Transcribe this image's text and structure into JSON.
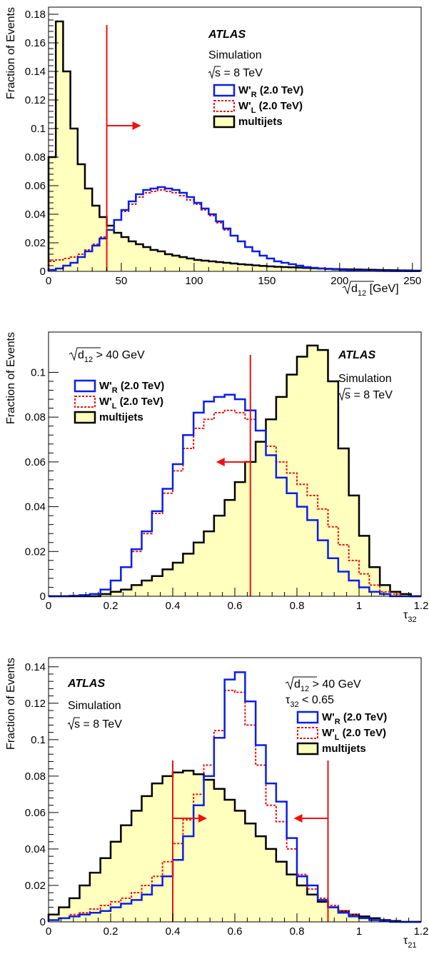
{
  "colors": {
    "wr": "#0a1ee6",
    "wl": "#ee1111",
    "qcd_fill": "#ffffbe",
    "qcd_line": "#000000",
    "cut": "#ee1111"
  },
  "chart_data": [
    {
      "type": "histogram",
      "ylabel": "Fraction of Events",
      "xlim": [
        0,
        256
      ],
      "ylim": [
        0,
        0.185
      ],
      "xticks": [
        0,
        50,
        100,
        150,
        200,
        250
      ],
      "xtick_labels": [
        "0",
        "50",
        "100",
        "150",
        "200",
        "250"
      ],
      "yticks": [
        0,
        0.02,
        0.04,
        0.06,
        0.08,
        0.1,
        0.12,
        0.14,
        0.16,
        0.18
      ],
      "ytick_labels": [
        "0",
        "0.02",
        "0.04",
        "0.06",
        "0.08",
        "0.1",
        "0.12",
        "0.14",
        "0.16",
        "0.18"
      ],
      "xlabel_parts": [
        "d",
        "12",
        " [GeV]"
      ],
      "annotations": [
        "ATLAS",
        "Simulation",
        "s = 8 TeV"
      ],
      "legend": [
        {
          "base": "W'",
          "sub": "R",
          "rest": " (2.0 TeV)"
        },
        {
          "base": "W'",
          "sub": "L",
          "rest": " (2.0 TeV)"
        },
        {
          "base": "multijets",
          "sub": "",
          "rest": ""
        }
      ],
      "cuts": [
        {
          "x": 40,
          "direction": "right"
        }
      ],
      "bin_edges": [
        0,
        5,
        10,
        15,
        20,
        25,
        30,
        35,
        40,
        45,
        50,
        55,
        60,
        65,
        70,
        75,
        80,
        85,
        90,
        95,
        100,
        105,
        110,
        115,
        120,
        125,
        130,
        135,
        140,
        145,
        150,
        155,
        160,
        165,
        170,
        175,
        180,
        185,
        190,
        195,
        200,
        205,
        210,
        215,
        220,
        225,
        230,
        235,
        240,
        245,
        250,
        255
      ],
      "series": [
        {
          "name": "W'R (2.0 TeV)",
          "style": "solid-blue",
          "values": [
            0.001,
            0.002,
            0.004,
            0.006,
            0.01,
            0.014,
            0.018,
            0.023,
            0.029,
            0.036,
            0.043,
            0.049,
            0.054,
            0.057,
            0.058,
            0.059,
            0.058,
            0.057,
            0.055,
            0.052,
            0.048,
            0.044,
            0.04,
            0.035,
            0.03,
            0.025,
            0.021,
            0.017,
            0.014,
            0.011,
            0.009,
            0.007,
            0.006,
            0.005,
            0.004,
            0.003,
            0.0025,
            0.002,
            0.0016,
            0.0013,
            0.001,
            0.0008,
            0.0006,
            0.0005,
            0.0004,
            0.0003,
            0.00025,
            0.0002,
            0.0002,
            0.0001,
            0.0001
          ]
        },
        {
          "name": "W'L (2.0 TeV)",
          "style": "dashed-red",
          "values": [
            0.007,
            0.008,
            0.009,
            0.01,
            0.012,
            0.015,
            0.019,
            0.024,
            0.029,
            0.036,
            0.042,
            0.047,
            0.052,
            0.055,
            0.056,
            0.057,
            0.056,
            0.055,
            0.053,
            0.05,
            0.047,
            0.043,
            0.039,
            0.034,
            0.029,
            0.025,
            0.021,
            0.017,
            0.014,
            0.011,
            0.009,
            0.007,
            0.006,
            0.005,
            0.004,
            0.003,
            0.0025,
            0.002,
            0.0016,
            0.0013,
            0.001,
            0.0008,
            0.0006,
            0.0005,
            0.0004,
            0.0003,
            0.00025,
            0.0002,
            0.0002,
            0.0001,
            0.0001
          ]
        },
        {
          "name": "multijets",
          "style": "filled",
          "values": [
            0.08,
            0.175,
            0.14,
            0.1,
            0.075,
            0.058,
            0.046,
            0.038,
            0.032,
            0.027,
            0.024,
            0.021,
            0.019,
            0.017,
            0.015,
            0.014,
            0.012,
            0.011,
            0.01,
            0.009,
            0.008,
            0.0075,
            0.007,
            0.0065,
            0.006,
            0.0055,
            0.005,
            0.0046,
            0.0042,
            0.0038,
            0.0035,
            0.0032,
            0.003,
            0.0028,
            0.0026,
            0.0024,
            0.0022,
            0.002,
            0.0018,
            0.0016,
            0.0015,
            0.0014,
            0.0013,
            0.0012,
            0.0011,
            0.001,
            0.0009,
            0.0008,
            0.0007,
            0.0006,
            0.0005
          ]
        }
      ]
    },
    {
      "type": "histogram",
      "ylabel": "Fraction of Events",
      "xlim": [
        0,
        1.2
      ],
      "ylim": [
        0,
        0.118
      ],
      "xticks": [
        0,
        0.2,
        0.4,
        0.6,
        0.8,
        1.0,
        1.2
      ],
      "xtick_labels": [
        "0",
        "0.2",
        "0.4",
        "0.6",
        "0.8",
        "1",
        "1.2"
      ],
      "yticks": [
        0,
        0.02,
        0.04,
        0.06,
        0.08,
        0.1
      ],
      "ytick_labels": [
        "0",
        "0.02",
        "0.04",
        "0.06",
        "0.08",
        "0.1"
      ],
      "xlabel_parts": [
        "τ",
        "32",
        ""
      ],
      "annotations": [
        "ATLAS",
        "Simulation",
        "s = 8 TeV"
      ],
      "cut_text": [
        "d",
        "12",
        " > 40 GeV"
      ],
      "legend": [
        {
          "base": "W'",
          "sub": "R",
          "rest": " (2.0 TeV)"
        },
        {
          "base": "W'",
          "sub": "L",
          "rest": " (2.0 TeV)"
        },
        {
          "base": "multijets",
          "sub": "",
          "rest": ""
        }
      ],
      "cuts": [
        {
          "x": 0.65,
          "direction": "left"
        }
      ],
      "bin_edges": [
        0,
        0.033,
        0.067,
        0.1,
        0.133,
        0.167,
        0.2,
        0.233,
        0.267,
        0.3,
        0.333,
        0.367,
        0.4,
        0.433,
        0.467,
        0.5,
        0.533,
        0.567,
        0.6,
        0.633,
        0.667,
        0.7,
        0.733,
        0.767,
        0.8,
        0.833,
        0.867,
        0.9,
        0.933,
        0.967,
        1.0,
        1.033,
        1.067,
        1.1,
        1.133,
        1.167,
        1.2
      ],
      "series": [
        {
          "name": "W'R (2.0 TeV)",
          "style": "solid-blue",
          "values": [
            0,
            0,
            0.0002,
            0.0005,
            0.001,
            0.003,
            0.007,
            0.013,
            0.021,
            0.029,
            0.038,
            0.048,
            0.059,
            0.072,
            0.082,
            0.087,
            0.089,
            0.09,
            0.088,
            0.083,
            0.074,
            0.063,
            0.053,
            0.046,
            0.04,
            0.034,
            0.025,
            0.017,
            0.011,
            0.007,
            0.004,
            0.002,
            0.001,
            0,
            0,
            0
          ]
        },
        {
          "name": "W'L (2.0 TeV)",
          "style": "dashed-red",
          "values": [
            0,
            0,
            0.0002,
            0.0005,
            0.001,
            0.003,
            0.007,
            0.013,
            0.02,
            0.028,
            0.037,
            0.046,
            0.056,
            0.066,
            0.075,
            0.079,
            0.082,
            0.083,
            0.082,
            0.079,
            0.074,
            0.067,
            0.06,
            0.055,
            0.05,
            0.045,
            0.039,
            0.031,
            0.023,
            0.016,
            0.01,
            0.005,
            0.002,
            0.001,
            0,
            0
          ]
        },
        {
          "name": "multijets",
          "style": "filled",
          "values": [
            0,
            0,
            0,
            0,
            0,
            0.001,
            0.002,
            0.003,
            0.005,
            0.007,
            0.009,
            0.012,
            0.015,
            0.019,
            0.024,
            0.029,
            0.036,
            0.043,
            0.051,
            0.06,
            0.069,
            0.079,
            0.089,
            0.099,
            0.107,
            0.112,
            0.11,
            0.096,
            0.066,
            0.045,
            0.027,
            0.013,
            0.005,
            0.002,
            0.001,
            0
          ]
        }
      ]
    },
    {
      "type": "histogram",
      "ylabel": "Fraction of Events",
      "xlim": [
        0,
        1.2
      ],
      "ylim": [
        0,
        0.145
      ],
      "xticks": [
        0,
        0.2,
        0.4,
        0.6,
        0.8,
        1.0,
        1.2
      ],
      "xtick_labels": [
        "0",
        "0.2",
        "0.4",
        "0.6",
        "0.8",
        "1",
        "1.2"
      ],
      "yticks": [
        0,
        0.02,
        0.04,
        0.06,
        0.08,
        0.1,
        0.12,
        0.14
      ],
      "ytick_labels": [
        "0",
        "0.02",
        "0.04",
        "0.06",
        "0.08",
        "0.1",
        "0.12",
        "0.14"
      ],
      "xlabel_parts": [
        "τ",
        "21",
        ""
      ],
      "annotations": [
        "ATLAS",
        "Simulation",
        "s = 8 TeV"
      ],
      "cut_text": [
        "d",
        "12",
        " > 40 GeV"
      ],
      "cut_text2": [
        "τ",
        "32",
        " < 0.65"
      ],
      "legend": [
        {
          "base": "W'",
          "sub": "R",
          "rest": " (2.0 TeV)"
        },
        {
          "base": "W'",
          "sub": "L",
          "rest": " (2.0 TeV)"
        },
        {
          "base": "multijets",
          "sub": "",
          "rest": ""
        }
      ],
      "cuts": [
        {
          "x": 0.4,
          "direction": "right"
        },
        {
          "x": 0.9,
          "direction": "left"
        }
      ],
      "bin_edges": [
        0,
        0.033,
        0.067,
        0.1,
        0.133,
        0.167,
        0.2,
        0.233,
        0.267,
        0.3,
        0.333,
        0.367,
        0.4,
        0.433,
        0.467,
        0.5,
        0.533,
        0.567,
        0.6,
        0.633,
        0.667,
        0.7,
        0.733,
        0.767,
        0.8,
        0.833,
        0.867,
        0.9,
        0.933,
        0.967,
        1.0,
        1.033,
        1.067,
        1.1,
        1.133,
        1.167,
        1.2
      ],
      "series": [
        {
          "name": "W'R (2.0 TeV)",
          "style": "solid-blue",
          "values": [
            0.001,
            0.002,
            0.003,
            0.004,
            0.005,
            0.006,
            0.008,
            0.01,
            0.012,
            0.015,
            0.02,
            0.025,
            0.034,
            0.047,
            0.064,
            0.08,
            0.101,
            0.133,
            0.137,
            0.121,
            0.097,
            0.076,
            0.066,
            0.046,
            0.025,
            0.02,
            0.012,
            0.008,
            0.005,
            0.003,
            0.002,
            0.001,
            0.0005,
            0,
            0,
            0
          ]
        },
        {
          "name": "W'L (2.0 TeV)",
          "style": "dashed-red",
          "values": [
            0.001,
            0.002,
            0.004,
            0.005,
            0.007,
            0.009,
            0.011,
            0.013,
            0.016,
            0.02,
            0.025,
            0.033,
            0.043,
            0.056,
            0.07,
            0.086,
            0.105,
            0.127,
            0.126,
            0.108,
            0.086,
            0.064,
            0.055,
            0.04,
            0.026,
            0.018,
            0.013,
            0.009,
            0.006,
            0.004,
            0.002,
            0.001,
            0.0005,
            0,
            0,
            0
          ]
        },
        {
          "name": "multijets",
          "style": "filled",
          "values": [
            0.004,
            0.008,
            0.013,
            0.02,
            0.027,
            0.035,
            0.044,
            0.053,
            0.061,
            0.069,
            0.076,
            0.08,
            0.082,
            0.083,
            0.081,
            0.078,
            0.073,
            0.067,
            0.061,
            0.054,
            0.047,
            0.04,
            0.033,
            0.026,
            0.02,
            0.015,
            0.011,
            0.008,
            0.006,
            0.004,
            0.003,
            0.002,
            0.001,
            0.0005,
            0,
            0
          ]
        }
      ]
    }
  ]
}
